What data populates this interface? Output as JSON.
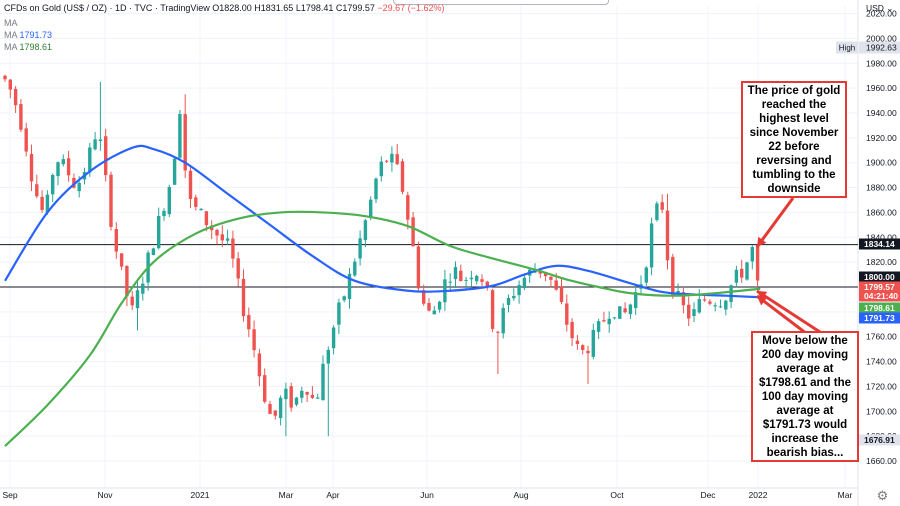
{
  "header": {
    "symbol": "CFDs on Gold (US$ / OZ) · 1D · TVC · TradingView",
    "ohlc": "O1828.00 H1831.65 L1798.41 C1799.57",
    "change": "−29.67 (−1.62%)",
    "ma1_label": "MA",
    "ma2_label": "MA",
    "ma2_value": "1791.73",
    "ma3_label": "MA",
    "ma3_value": "1798.61"
  },
  "price_axis": {
    "currency_label": "USD",
    "high_label": "High",
    "high_value": "1992.63",
    "badges": [
      {
        "value": "1834.14",
        "bg": "#131722",
        "fg": "#ffffff"
      },
      {
        "value": "1800.00",
        "bg": "#131722",
        "fg": "#ffffff"
      },
      {
        "value": "1799.57",
        "bg": "#ef5350",
        "fg": "#ffffff"
      },
      {
        "value": "04:21:40",
        "bg": "#ef5350",
        "fg": "#ffffff"
      },
      {
        "value": "1798.61",
        "bg": "#4caf50",
        "fg": "#ffffff"
      },
      {
        "value": "1791.73",
        "bg": "#2962ff",
        "fg": "#ffffff"
      },
      {
        "value": "1676.91",
        "bg": "#e0e3eb",
        "fg": "#131722"
      }
    ]
  },
  "annotations": {
    "top": "The price of gold reached the highest level since November 22 before reversing and tumbling to the downside",
    "bottom": "Move below the 200 day moving average at $1798.61 and the 100 day moving average at $1791.73 would increase the bearish bias..."
  },
  "colors": {
    "up": "#26a69a",
    "down": "#ef5350",
    "ma100": "#2962ff",
    "ma200": "#4caf50",
    "hline": "#131722",
    "arrow": "#e53935",
    "grid": "#f0f3fa"
  },
  "icons": {
    "settings": "gear-icon"
  },
  "chart_data": {
    "type": "candlestick",
    "title": "CFDs on Gold (US$ / OZ) · 1D · TVC",
    "x_ticks": [
      "Sep",
      "Nov",
      "2021",
      "Mar",
      "Apr",
      "Jun",
      "Aug",
      "Oct",
      "Dec",
      "2022",
      "Mar"
    ],
    "y_ticks": [
      1660,
      1680,
      1700,
      1720,
      1740,
      1760,
      1780,
      1800,
      1820,
      1840,
      1860,
      1880,
      1900,
      1920,
      1940,
      1960,
      1980,
      2000,
      2020
    ],
    "ylim": [
      1650,
      2028
    ],
    "horizontal_lines": [
      1834.14,
      1800.0
    ],
    "last_close": 1799.57,
    "session_high": 1992.63,
    "session_low": 1676.91,
    "grid": true,
    "price_path": [
      {
        "t": 0,
        "p": 1970
      },
      {
        "t": 2,
        "p": 1955
      },
      {
        "t": 4,
        "p": 1925
      },
      {
        "t": 6,
        "p": 1880
      },
      {
        "t": 8,
        "p": 1855
      },
      {
        "t": 10,
        "p": 1905
      },
      {
        "t": 12,
        "p": 1895
      },
      {
        "t": 14,
        "p": 1880
      },
      {
        "t": 16,
        "p": 1900
      },
      {
        "t": 18,
        "p": 1930
      },
      {
        "t": 19.5,
        "p": 1885
      },
      {
        "t": 21,
        "p": 1840
      },
      {
        "t": 23,
        "p": 1800
      },
      {
        "t": 24.5,
        "p": 1780
      },
      {
        "t": 26,
        "p": 1800
      },
      {
        "t": 28,
        "p": 1830
      },
      {
        "t": 30,
        "p": 1860
      },
      {
        "t": 32,
        "p": 1890
      },
      {
        "t": 33.5,
        "p": 1945
      },
      {
        "t": 35,
        "p": 1870
      },
      {
        "t": 37,
        "p": 1860
      },
      {
        "t": 39,
        "p": 1850
      },
      {
        "t": 41,
        "p": 1840
      },
      {
        "t": 43,
        "p": 1830
      },
      {
        "t": 45,
        "p": 1790
      },
      {
        "t": 47,
        "p": 1760
      },
      {
        "t": 49,
        "p": 1720
      },
      {
        "t": 51,
        "p": 1690
      },
      {
        "t": 53,
        "p": 1715
      },
      {
        "t": 55,
        "p": 1705
      },
      {
        "t": 57,
        "p": 1725
      },
      {
        "t": 59,
        "p": 1705
      },
      {
        "t": 61,
        "p": 1745
      },
      {
        "t": 63,
        "p": 1775
      },
      {
        "t": 65,
        "p": 1800
      },
      {
        "t": 67,
        "p": 1830
      },
      {
        "t": 69,
        "p": 1860
      },
      {
        "t": 71,
        "p": 1895
      },
      {
        "t": 73,
        "p": 1905
      },
      {
        "t": 75,
        "p": 1890
      },
      {
        "t": 77,
        "p": 1845
      },
      {
        "t": 79,
        "p": 1790
      },
      {
        "t": 81,
        "p": 1775
      },
      {
        "t": 83,
        "p": 1800
      },
      {
        "t": 85,
        "p": 1815
      },
      {
        "t": 87,
        "p": 1805
      },
      {
        "t": 89,
        "p": 1815
      },
      {
        "t": 91,
        "p": 1805
      },
      {
        "t": 93,
        "p": 1760
      },
      {
        "t": 95,
        "p": 1785
      },
      {
        "t": 97,
        "p": 1800
      },
      {
        "t": 99,
        "p": 1810
      },
      {
        "t": 101,
        "p": 1815
      },
      {
        "t": 103,
        "p": 1810
      },
      {
        "t": 105,
        "p": 1790
      },
      {
        "t": 107,
        "p": 1765
      },
      {
        "t": 109,
        "p": 1745
      },
      {
        "t": 111,
        "p": 1755
      },
      {
        "t": 113,
        "p": 1770
      },
      {
        "t": 115,
        "p": 1785
      },
      {
        "t": 117,
        "p": 1775
      },
      {
        "t": 119,
        "p": 1790
      },
      {
        "t": 121,
        "p": 1810
      },
      {
        "t": 123,
        "p": 1860
      },
      {
        "t": 124.5,
        "p": 1865
      },
      {
        "t": 126,
        "p": 1805
      },
      {
        "t": 128,
        "p": 1785
      },
      {
        "t": 130,
        "p": 1775
      },
      {
        "t": 132,
        "p": 1790
      },
      {
        "t": 134,
        "p": 1790
      },
      {
        "t": 136,
        "p": 1790
      },
      {
        "t": 138,
        "p": 1805
      },
      {
        "t": 140,
        "p": 1815
      },
      {
        "t": 141.5,
        "p": 1830
      },
      {
        "t": 142.5,
        "p": 1800
      }
    ],
    "spikes": [
      {
        "t": 18.2,
        "p": 1965
      },
      {
        "t": 33.8,
        "p": 1955
      },
      {
        "t": 24.8,
        "p": 1765
      },
      {
        "t": 52.5,
        "p": 1680
      },
      {
        "t": 60.8,
        "p": 1680
      },
      {
        "t": 74,
        "p": 1915
      },
      {
        "t": 92.8,
        "p": 1690
      },
      {
        "t": 93.2,
        "p": 1730
      },
      {
        "t": 109.5,
        "p": 1722
      },
      {
        "t": 124.8,
        "p": 1875
      },
      {
        "t": 141.5,
        "p": 1834
      }
    ],
    "series": [
      {
        "name": "MA",
        "current": 1791.73,
        "points": [
          {
            "t": 0,
            "p": 1805
          },
          {
            "t": 8,
            "p": 1860
          },
          {
            "t": 16,
            "p": 1893
          },
          {
            "t": 24,
            "p": 1912
          },
          {
            "t": 28,
            "p": 1911
          },
          {
            "t": 34,
            "p": 1900
          },
          {
            "t": 42,
            "p": 1875
          },
          {
            "t": 50,
            "p": 1850
          },
          {
            "t": 58,
            "p": 1825
          },
          {
            "t": 66,
            "p": 1805
          },
          {
            "t": 76,
            "p": 1797
          },
          {
            "t": 84,
            "p": 1797
          },
          {
            "t": 92,
            "p": 1801
          },
          {
            "t": 98,
            "p": 1810
          },
          {
            "t": 104,
            "p": 1817
          },
          {
            "t": 110,
            "p": 1813
          },
          {
            "t": 118,
            "p": 1803
          },
          {
            "t": 124,
            "p": 1796
          },
          {
            "t": 130,
            "p": 1794
          },
          {
            "t": 136,
            "p": 1793
          },
          {
            "t": 142.5,
            "p": 1791.73
          }
        ]
      },
      {
        "name": "MA",
        "current": 1798.61,
        "points": [
          {
            "t": 0,
            "p": 1672
          },
          {
            "t": 8,
            "p": 1705
          },
          {
            "t": 16,
            "p": 1745
          },
          {
            "t": 22,
            "p": 1787
          },
          {
            "t": 28,
            "p": 1820
          },
          {
            "t": 36,
            "p": 1843
          },
          {
            "t": 44,
            "p": 1855
          },
          {
            "t": 52,
            "p": 1860
          },
          {
            "t": 60,
            "p": 1860
          },
          {
            "t": 68,
            "p": 1857
          },
          {
            "t": 76,
            "p": 1849
          },
          {
            "t": 84,
            "p": 1833
          },
          {
            "t": 92,
            "p": 1823
          },
          {
            "t": 100,
            "p": 1814
          },
          {
            "t": 106,
            "p": 1806
          },
          {
            "t": 112,
            "p": 1800
          },
          {
            "t": 118,
            "p": 1795
          },
          {
            "t": 126,
            "p": 1793
          },
          {
            "t": 134,
            "p": 1795
          },
          {
            "t": 142.5,
            "p": 1798.61
          }
        ]
      }
    ]
  }
}
